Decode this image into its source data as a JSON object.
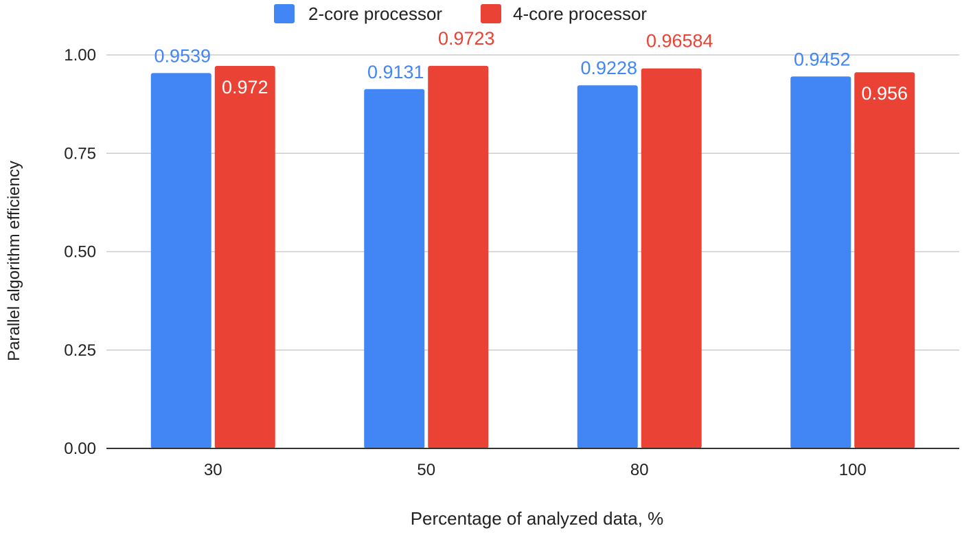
{
  "chart_data": {
    "type": "bar",
    "title": "",
    "xlabel": "Percentage of analyzed data, %",
    "ylabel": "Parallel algorithm efficiency",
    "categories": [
      "30",
      "50",
      "80",
      "100"
    ],
    "ylim": [
      0,
      1
    ],
    "yticks": [
      0,
      0.25,
      0.5,
      0.75,
      1.0
    ],
    "ytick_labels": [
      "0.00",
      "0.25",
      "0.50",
      "0.75",
      "1.00"
    ],
    "grid": true,
    "legend_position": "top",
    "series": [
      {
        "name": "2-core processor",
        "color": "#4285F4",
        "label_color": "#4285F4",
        "label_position": "above",
        "values": [
          0.9539,
          0.9131,
          0.9228,
          0.9452
        ],
        "labels": [
          "0.9539",
          "0.9131",
          "0.9228",
          "0.9452"
        ]
      },
      {
        "name": "4-core processor",
        "color": "#EA4335",
        "label_color_inside": "#ffffff",
        "label_color_above": "#EA4335",
        "values": [
          0.972,
          0.9723,
          0.96584,
          0.956
        ],
        "labels": [
          "0.972",
          "0.9723",
          "0.96584",
          "0.956"
        ],
        "label_positions": [
          "inside",
          "above",
          "above",
          "inside"
        ]
      }
    ]
  }
}
